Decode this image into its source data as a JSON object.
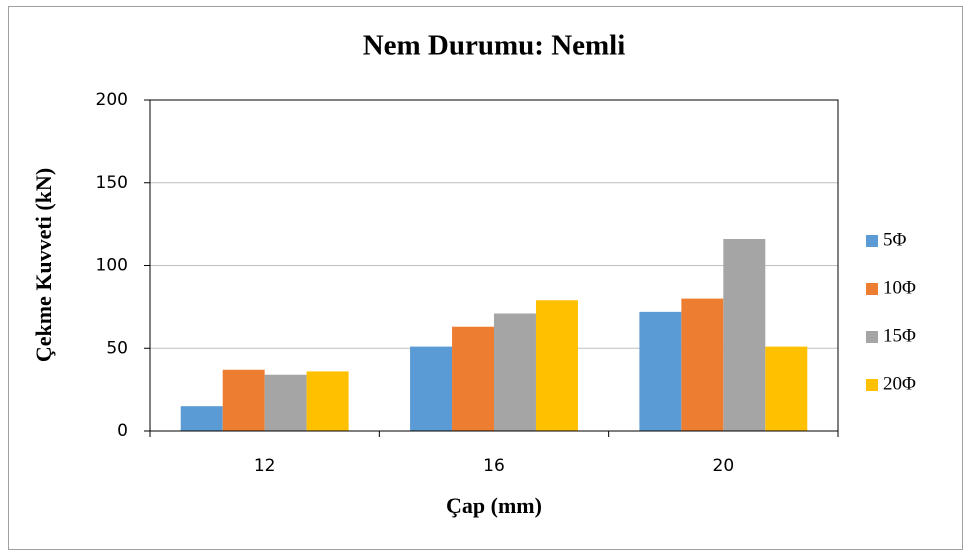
{
  "chart_data": {
    "type": "bar",
    "title": "Nem Durumu: Nemli",
    "x_label": "Çap (mm)",
    "y_label": "Çekme Kuvveti (kN)",
    "categories": [
      "12",
      "16",
      "20"
    ],
    "series": [
      {
        "name": "5Φ",
        "color": "#5b9bd5",
        "values": [
          15,
          51,
          72
        ]
      },
      {
        "name": "10Φ",
        "color": "#ed7d31",
        "values": [
          37,
          63,
          80
        ]
      },
      {
        "name": "15Φ",
        "color": "#a5a5a5",
        "values": [
          34,
          71,
          116
        ]
      },
      {
        "name": "20Φ",
        "color": "#ffc000",
        "values": [
          36,
          79,
          51
        ]
      }
    ],
    "ylim": [
      0,
      200
    ],
    "yticks": [
      0,
      50,
      100,
      150,
      200
    ],
    "grid": true,
    "legend": "right"
  }
}
